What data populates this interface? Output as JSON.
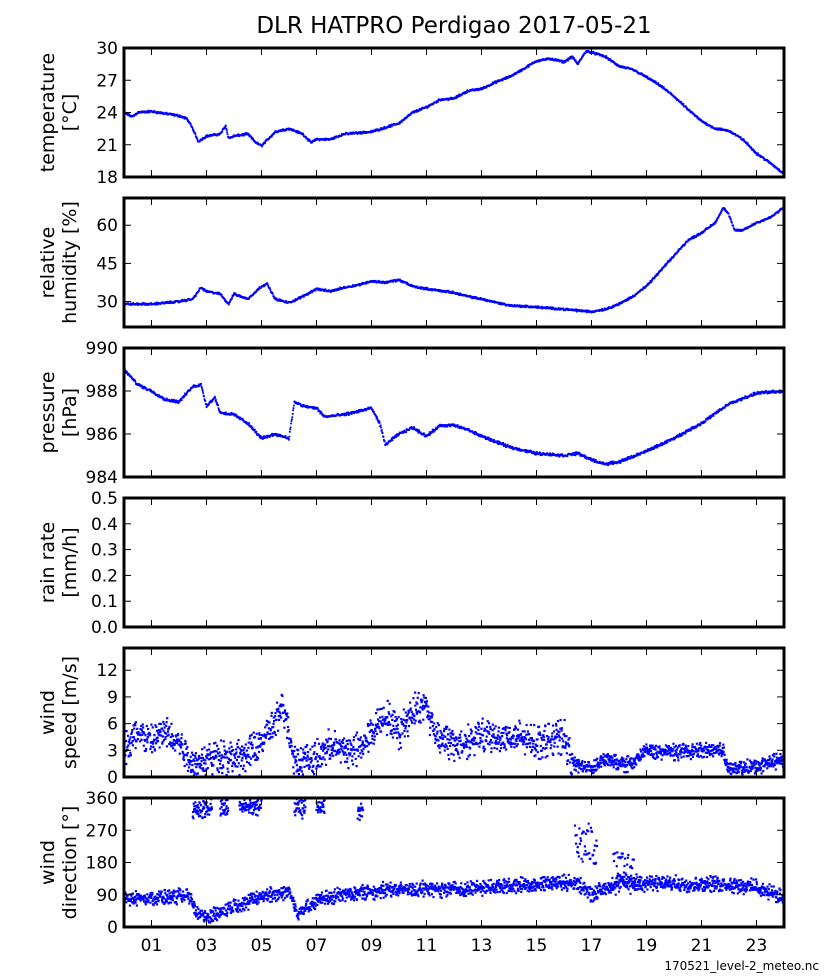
{
  "chart_data": {
    "type": "scatter",
    "title": "DLR HATPRO  Perdigao  2017-05-21",
    "footer": "170521_level-2_meteo.nc",
    "x_range": [
      0,
      24
    ],
    "x_ticks": [
      1,
      3,
      5,
      7,
      9,
      11,
      13,
      15,
      17,
      19,
      21,
      23
    ],
    "x_tick_labels": [
      "01",
      "03",
      "05",
      "07",
      "09",
      "11",
      "13",
      "15",
      "17",
      "19",
      "21",
      "23"
    ],
    "color": "#0000ff",
    "panels": [
      {
        "ylabel": [
          "temperature",
          "[°C]"
        ],
        "ylim": [
          18,
          30
        ],
        "y_ticks": [
          18,
          21,
          24,
          27,
          30
        ],
        "y_tick_labels": [
          "18",
          "21",
          "24",
          "27",
          "30"
        ],
        "spread": 0.12,
        "series": [
          [
            0,
            24
          ],
          [
            0.3,
            23.6
          ],
          [
            0.5,
            24
          ],
          [
            1,
            24.1
          ],
          [
            2,
            23.7
          ],
          [
            2.3,
            23.4
          ],
          [
            2.5,
            22.5
          ],
          [
            2.7,
            21.3
          ],
          [
            3,
            21.8
          ],
          [
            3.5,
            22
          ],
          [
            3.7,
            22.8
          ],
          [
            3.8,
            21.6
          ],
          [
            4,
            21.8
          ],
          [
            4.5,
            22
          ],
          [
            4.8,
            21.2
          ],
          [
            5,
            20.9
          ],
          [
            5.5,
            22.2
          ],
          [
            6,
            22.5
          ],
          [
            6.5,
            22
          ],
          [
            6.8,
            21.2
          ],
          [
            7,
            21.5
          ],
          [
            7.5,
            21.5
          ],
          [
            8,
            22
          ],
          [
            9,
            22.2
          ],
          [
            10,
            23
          ],
          [
            10.5,
            24
          ],
          [
            11,
            24.5
          ],
          [
            11.5,
            25.2
          ],
          [
            12,
            25.3
          ],
          [
            12.5,
            26
          ],
          [
            13,
            26.2
          ],
          [
            13.5,
            26.8
          ],
          [
            14,
            27.3
          ],
          [
            14.5,
            28
          ],
          [
            15,
            28.8
          ],
          [
            15.5,
            29
          ],
          [
            16,
            28.7
          ],
          [
            16.3,
            29.2
          ],
          [
            16.5,
            28.5
          ],
          [
            16.8,
            29.7
          ],
          [
            17,
            29.6
          ],
          [
            17.5,
            29.2
          ],
          [
            18,
            28.3
          ],
          [
            18.5,
            28
          ],
          [
            19,
            27.3
          ],
          [
            19.5,
            26.5
          ],
          [
            20,
            25.5
          ],
          [
            20.5,
            24.3
          ],
          [
            21,
            23.2
          ],
          [
            21.5,
            22.5
          ],
          [
            22,
            22.3
          ],
          [
            22.5,
            21.5
          ],
          [
            23,
            20.2
          ],
          [
            23.5,
            19.3
          ],
          [
            24,
            18.3
          ]
        ]
      },
      {
        "ylabel": [
          "relative",
          "humidity [%]"
        ],
        "ylim": [
          20,
          70.7
        ],
        "y_ticks": [
          30,
          45,
          60
        ],
        "y_tick_labels": [
          "30",
          "45",
          "60"
        ],
        "spread": 0.5,
        "series": [
          [
            0,
            29
          ],
          [
            1,
            29
          ],
          [
            2,
            30
          ],
          [
            2.5,
            31
          ],
          [
            2.8,
            35.5
          ],
          [
            3,
            34
          ],
          [
            3.5,
            33
          ],
          [
            3.8,
            29
          ],
          [
            4,
            33
          ],
          [
            4.5,
            31
          ],
          [
            5,
            36
          ],
          [
            5.2,
            37
          ],
          [
            5.5,
            31
          ],
          [
            6,
            29.5
          ],
          [
            6.5,
            32
          ],
          [
            7,
            35
          ],
          [
            7.5,
            34
          ],
          [
            8,
            35.5
          ],
          [
            8.5,
            36.5
          ],
          [
            9,
            38
          ],
          [
            9.5,
            37.5
          ],
          [
            10,
            38.5
          ],
          [
            10.5,
            36
          ],
          [
            11,
            35
          ],
          [
            12,
            33.5
          ],
          [
            12.5,
            32
          ],
          [
            13,
            31
          ],
          [
            14,
            28.5
          ],
          [
            15,
            27.8
          ],
          [
            16,
            27
          ],
          [
            16.5,
            26.5
          ],
          [
            17,
            26
          ],
          [
            17.5,
            27
          ],
          [
            18,
            29
          ],
          [
            18.5,
            32
          ],
          [
            19,
            36
          ],
          [
            19.5,
            42
          ],
          [
            20,
            48
          ],
          [
            20.5,
            54
          ],
          [
            21,
            57
          ],
          [
            21.5,
            61
          ],
          [
            21.8,
            67
          ],
          [
            22,
            64
          ],
          [
            22.2,
            58
          ],
          [
            22.5,
            58
          ],
          [
            23,
            61
          ],
          [
            23.5,
            63
          ],
          [
            24,
            67
          ]
        ]
      },
      {
        "ylabel": [
          "pressure",
          "[hPa]"
        ],
        "ylim": [
          984,
          990
        ],
        "y_ticks": [
          984,
          986,
          988,
          990
        ],
        "y_tick_labels": [
          "984",
          "986",
          "988",
          "990"
        ],
        "spread": 0.08,
        "series": [
          [
            0,
            989
          ],
          [
            0.5,
            988.3
          ],
          [
            1,
            988
          ],
          [
            1.5,
            987.6
          ],
          [
            2,
            987.5
          ],
          [
            2.5,
            988.2
          ],
          [
            2.8,
            988.3
          ],
          [
            3,
            987.3
          ],
          [
            3.3,
            987.7
          ],
          [
            3.5,
            987
          ],
          [
            4,
            986.9
          ],
          [
            4.5,
            986.5
          ],
          [
            5,
            985.8
          ],
          [
            5.5,
            986
          ],
          [
            6,
            985.8
          ],
          [
            6.2,
            987.5
          ],
          [
            6.5,
            987.3
          ],
          [
            7,
            987.2
          ],
          [
            7.3,
            986.8
          ],
          [
            8,
            986.9
          ],
          [
            9,
            987.2
          ],
          [
            9.3,
            986.5
          ],
          [
            9.5,
            985.5
          ],
          [
            10,
            986
          ],
          [
            10.5,
            986.3
          ],
          [
            11,
            985.9
          ],
          [
            11.5,
            986.4
          ],
          [
            12,
            986.4
          ],
          [
            12.5,
            986.2
          ],
          [
            13,
            985.9
          ],
          [
            14,
            985.4
          ],
          [
            15,
            985.1
          ],
          [
            16,
            985
          ],
          [
            16.5,
            985.1
          ],
          [
            17,
            984.8
          ],
          [
            17.5,
            984.6
          ],
          [
            18,
            984.7
          ],
          [
            19,
            985.2
          ],
          [
            20,
            985.8
          ],
          [
            21,
            986.5
          ],
          [
            22,
            987.4
          ],
          [
            23,
            987.9
          ],
          [
            24,
            988
          ]
        ]
      },
      {
        "ylabel": [
          "rain rate",
          "[mm/h]"
        ],
        "ylim": [
          0,
          0.5
        ],
        "y_ticks": [
          0,
          0.1,
          0.2,
          0.3,
          0.4,
          0.5
        ],
        "y_tick_labels": [
          "0.0",
          "0.1",
          "0.2",
          "0.3",
          "0.4",
          "0.5"
        ],
        "spread": 0,
        "series": []
      },
      {
        "ylabel": [
          "wind",
          "speed [m/s]"
        ],
        "ylim": [
          0,
          14.5
        ],
        "y_ticks": [
          0,
          3,
          6,
          9,
          12
        ],
        "y_tick_labels": [
          "0",
          "3",
          "6",
          "9",
          "12"
        ],
        "spread": 2.2,
        "spread_after_17h": 1.0,
        "series": [
          [
            0,
            3
          ],
          [
            0.5,
            5
          ],
          [
            1,
            4
          ],
          [
            1.5,
            5
          ],
          [
            2,
            4
          ],
          [
            2.5,
            1.5
          ],
          [
            3,
            2
          ],
          [
            3.5,
            2.5
          ],
          [
            4,
            2
          ],
          [
            4.5,
            2.5
          ],
          [
            5,
            4
          ],
          [
            5.5,
            6
          ],
          [
            5.8,
            8
          ],
          [
            6.2,
            2
          ],
          [
            7,
            2
          ],
          [
            7.5,
            3.5
          ],
          [
            8,
            3
          ],
          [
            8.5,
            3
          ],
          [
            9,
            5
          ],
          [
            9.5,
            7
          ],
          [
            10,
            5
          ],
          [
            10.5,
            7.5
          ],
          [
            11,
            8
          ],
          [
            11.3,
            5
          ],
          [
            12,
            3.5
          ],
          [
            13,
            4.5
          ],
          [
            14,
            4.5
          ],
          [
            15,
            4
          ],
          [
            16,
            4.5
          ],
          [
            16.3,
            1.5
          ],
          [
            17,
            1
          ],
          [
            17.5,
            2
          ],
          [
            18,
            1.5
          ],
          [
            18.5,
            1.5
          ],
          [
            19,
            3
          ],
          [
            20,
            2.8
          ],
          [
            21,
            3
          ],
          [
            21.8,
            3
          ],
          [
            22,
            0.8
          ],
          [
            23,
            1.2
          ],
          [
            24,
            2
          ]
        ]
      },
      {
        "ylabel": [
          "wind",
          "direction [°]"
        ],
        "ylim": [
          0,
          360
        ],
        "y_ticks": [
          0,
          90,
          180,
          270,
          360
        ],
        "y_tick_labels": [
          "0",
          "90",
          "180",
          "270",
          "360"
        ],
        "spread": 25,
        "series": [
          [
            0,
            80
          ],
          [
            2.4,
            85
          ],
          [
            2.6,
            40
          ],
          [
            3,
            30
          ],
          [
            3.5,
            40
          ],
          [
            4,
            60
          ],
          [
            4.5,
            70
          ],
          [
            5,
            85
          ],
          [
            6,
            100
          ],
          [
            6.3,
            40
          ],
          [
            6.8,
            60
          ],
          [
            7.2,
            80
          ],
          [
            8,
            90
          ],
          [
            9,
            100
          ],
          [
            10,
            105
          ],
          [
            12,
            105
          ],
          [
            14,
            115
          ],
          [
            16,
            125
          ],
          [
            16.5,
            120
          ],
          [
            17,
            90
          ],
          [
            18,
            125
          ],
          [
            20,
            120
          ],
          [
            22,
            120
          ],
          [
            23,
            110
          ],
          [
            24,
            80
          ]
        ],
        "north_wind_periods": [
          [
            2.5,
            3.2,
            330
          ],
          [
            3.5,
            3.8,
            330
          ],
          [
            4.2,
            5.0,
            335
          ],
          [
            6.2,
            6.6,
            330
          ],
          [
            7.0,
            7.3,
            335
          ],
          [
            8.5,
            8.7,
            320
          ]
        ],
        "scatter_periods": [
          [
            16.4,
            17.2,
            230
          ],
          [
            17.8,
            18.6,
            150
          ]
        ]
      }
    ]
  }
}
